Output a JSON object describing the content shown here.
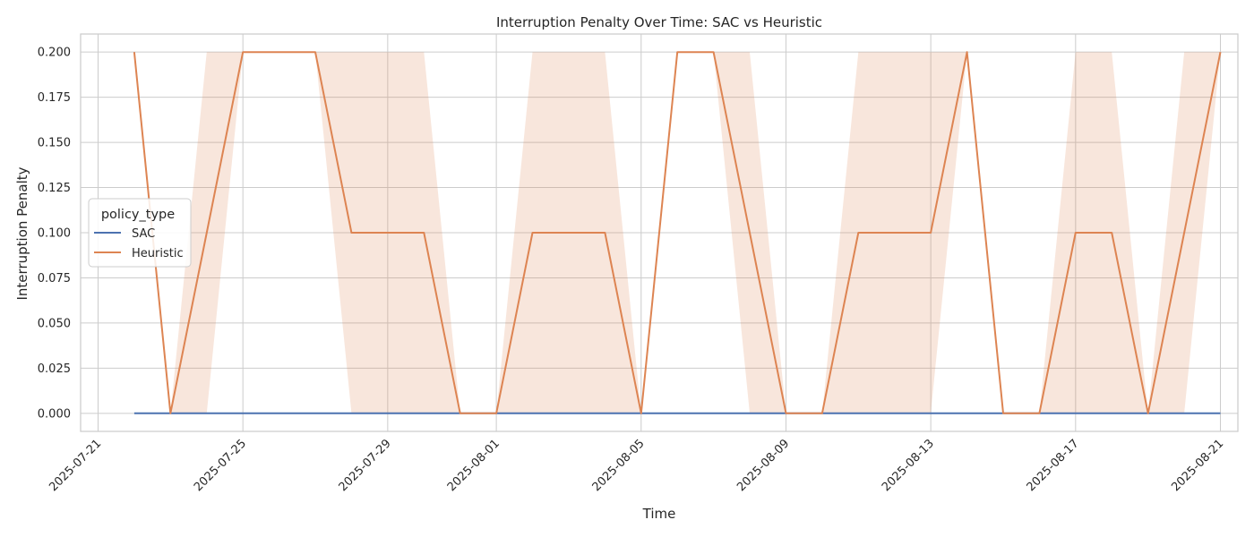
{
  "chart_data": {
    "type": "line",
    "title": "Interruption Penalty Over Time: SAC vs Heuristic",
    "xlabel": "Time",
    "ylabel": "Interruption Penalty",
    "x_ticks": [
      "2025-07-21",
      "2025-07-25",
      "2025-07-29",
      "2025-08-01",
      "2025-08-05",
      "2025-08-09",
      "2025-08-13",
      "2025-08-17",
      "2025-08-21"
    ],
    "y_ticks": [
      "0.000",
      "0.025",
      "0.050",
      "0.075",
      "0.100",
      "0.125",
      "0.150",
      "0.175",
      "0.200"
    ],
    "xlim": [
      "2025-07-21",
      "2025-08-21"
    ],
    "ylim": [
      -0.01,
      0.21
    ],
    "grid": true,
    "legend": {
      "title": "policy_type",
      "position": "center-left"
    },
    "x": [
      "2025-07-22",
      "2025-07-23",
      "2025-07-24",
      "2025-07-25",
      "2025-07-26",
      "2025-07-27",
      "2025-07-28",
      "2025-07-29",
      "2025-07-30",
      "2025-07-31",
      "2025-08-01",
      "2025-08-02",
      "2025-08-03",
      "2025-08-04",
      "2025-08-05",
      "2025-08-06",
      "2025-08-07",
      "2025-08-08",
      "2025-08-09",
      "2025-08-10",
      "2025-08-11",
      "2025-08-12",
      "2025-08-13",
      "2025-08-14",
      "2025-08-15",
      "2025-08-16",
      "2025-08-17",
      "2025-08-18",
      "2025-08-19",
      "2025-08-20",
      "2025-08-21"
    ],
    "series": [
      {
        "name": "SAC",
        "color": "#4c72b0",
        "values": [
          0,
          0,
          0,
          0,
          0,
          0,
          0,
          0,
          0,
          0,
          0,
          0,
          0,
          0,
          0,
          0,
          0,
          0,
          0,
          0,
          0,
          0,
          0,
          0,
          0,
          0,
          0,
          0,
          0,
          0,
          0
        ]
      },
      {
        "name": "Heuristic",
        "color": "#dd8452",
        "values": [
          0.2,
          0,
          0.1,
          0.2,
          0.2,
          0.2,
          0.1,
          0.1,
          0.1,
          0,
          0,
          0.1,
          0.1,
          0.1,
          0,
          0.2,
          0.2,
          0.1,
          0,
          0,
          0.1,
          0.1,
          0.1,
          0.2,
          0,
          0,
          0.1,
          0.1,
          0,
          0.1,
          0.2
        ],
        "ci_lower": [
          0.2,
          0,
          0,
          0.2,
          0.2,
          0.2,
          0,
          0,
          0,
          0,
          0,
          0,
          0,
          0,
          0,
          0.2,
          0.2,
          0,
          0,
          0,
          0,
          0,
          0,
          0.2,
          0,
          0,
          0,
          0,
          0,
          0,
          0.2
        ],
        "ci_upper": [
          0.2,
          0,
          0.2,
          0.2,
          0.2,
          0.2,
          0.2,
          0.2,
          0.2,
          0,
          0,
          0.2,
          0.2,
          0.2,
          0,
          0.2,
          0.2,
          0.2,
          0,
          0,
          0.2,
          0.2,
          0.2,
          0.2,
          0,
          0,
          0.2,
          0.2,
          0,
          0.2,
          0.2
        ]
      }
    ]
  }
}
